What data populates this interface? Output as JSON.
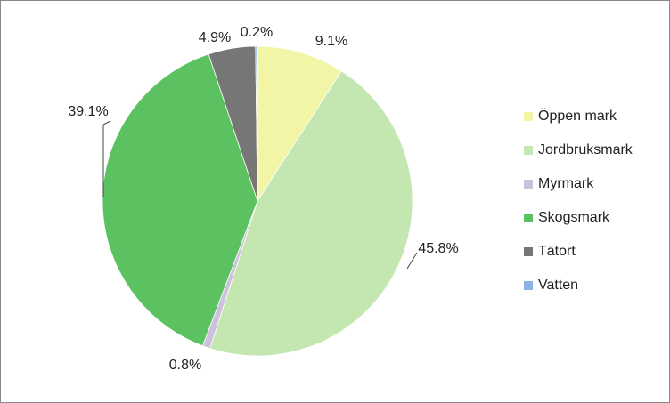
{
  "chart_data": {
    "type": "pie",
    "categories": [
      "Öppen mark",
      "Jordbruksmark",
      "Myrmark",
      "Skogsmark",
      "Tätort",
      "Vatten"
    ],
    "values": [
      9.1,
      45.8,
      0.8,
      39.1,
      4.9,
      0.2
    ],
    "value_labels": [
      "9.1%",
      "45.8%",
      "0.8%",
      "39.1%",
      "4.9%",
      "0.2%"
    ],
    "colors": [
      "#f3f5a6",
      "#c4e6b0",
      "#ccc0dc",
      "#5cc160",
      "#767676",
      "#8db3e2"
    ],
    "legend": "right"
  }
}
